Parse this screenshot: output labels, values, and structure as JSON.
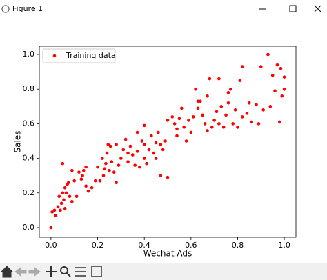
{
  "window_title": "Figure 1",
  "chart_data": {
    "type": "scatter",
    "xlabel": "Wechat Ads",
    "ylabel": "Sales",
    "legend": "upper left",
    "series": [
      {
        "name": "Training data",
        "color": "#ff0000",
        "x": [
          0.0,
          0.005,
          0.015,
          0.02,
          0.03,
          0.035,
          0.04,
          0.045,
          0.05,
          0.05,
          0.055,
          0.06,
          0.065,
          0.07,
          0.075,
          0.08,
          0.09,
          0.1,
          0.11,
          0.12,
          0.13,
          0.135,
          0.14,
          0.15,
          0.16,
          0.175,
          0.19,
          0.2,
          0.21,
          0.22,
          0.225,
          0.23,
          0.235,
          0.24,
          0.245,
          0.25,
          0.255,
          0.26,
          0.27,
          0.28,
          0.29,
          0.3,
          0.31,
          0.32,
          0.33,
          0.34,
          0.35,
          0.36,
          0.37,
          0.37,
          0.38,
          0.39,
          0.4,
          0.4,
          0.41,
          0.42,
          0.43,
          0.44,
          0.45,
          0.46,
          0.47,
          0.47,
          0.48,
          0.49,
          0.5,
          0.5,
          0.53,
          0.54,
          0.55,
          0.56,
          0.57,
          0.58,
          0.59,
          0.6,
          0.61,
          0.62,
          0.63,
          0.64,
          0.65,
          0.66,
          0.67,
          0.67,
          0.68,
          0.69,
          0.7,
          0.71,
          0.72,
          0.72,
          0.73,
          0.74,
          0.75,
          0.76,
          0.76,
          0.77,
          0.78,
          0.79,
          0.8,
          0.81,
          0.82,
          0.82,
          0.84,
          0.85,
          0.86,
          0.88,
          0.89,
          0.9,
          0.91,
          0.93,
          0.94,
          0.95,
          0.96,
          0.97,
          0.98,
          0.99,
          1.0,
          1.0,
          0.985,
          0.52,
          0.63,
          0.45,
          0.33,
          0.15,
          0.09,
          0.06,
          0.28,
          0.4,
          0.54
        ],
        "values": [
          0.0,
          0.09,
          0.1,
          0.07,
          0.12,
          0.18,
          0.1,
          0.14,
          0.37,
          0.2,
          0.16,
          0.23,
          0.2,
          0.25,
          0.26,
          0.18,
          0.33,
          0.27,
          0.18,
          0.32,
          0.28,
          0.3,
          0.33,
          0.35,
          0.21,
          0.23,
          0.27,
          0.35,
          0.27,
          0.4,
          0.3,
          0.34,
          0.37,
          0.43,
          0.48,
          0.33,
          0.47,
          0.38,
          0.32,
          0.26,
          0.36,
          0.4,
          0.45,
          0.51,
          0.38,
          0.47,
          0.42,
          0.36,
          0.55,
          0.44,
          0.35,
          0.5,
          0.4,
          0.59,
          0.37,
          0.45,
          0.53,
          0.43,
          0.4,
          0.55,
          0.48,
          0.3,
          0.45,
          0.5,
          0.62,
          0.29,
          0.6,
          0.57,
          0.63,
          0.69,
          0.58,
          0.5,
          0.62,
          0.55,
          0.64,
          0.8,
          0.73,
          0.73,
          0.65,
          0.6,
          0.76,
          0.56,
          0.86,
          0.58,
          0.62,
          0.67,
          0.86,
          0.6,
          0.7,
          0.58,
          0.65,
          0.72,
          0.78,
          0.8,
          0.6,
          0.68,
          0.58,
          0.85,
          0.64,
          0.93,
          0.66,
          0.72,
          0.61,
          0.71,
          0.6,
          0.93,
          0.68,
          1.0,
          0.7,
          0.88,
          0.79,
          0.94,
          0.61,
          0.76,
          0.8,
          0.87,
          0.92,
          0.64,
          0.69,
          0.49,
          0.43,
          0.24,
          0.15,
          0.11,
          0.48,
          0.48,
          0.53
        ]
      }
    ],
    "xlim": [
      -0.05,
      1.05
    ],
    "ylim": [
      -0.056,
      1.048
    ],
    "xticks": [
      {
        "value": 0,
        "label": "0.0"
      },
      {
        "value": 0.2,
        "label": "0.2"
      },
      {
        "value": 0.4,
        "label": "0.4"
      },
      {
        "value": 0.6,
        "label": "0.6"
      },
      {
        "value": 0.8,
        "label": "0.8"
      },
      {
        "value": 1,
        "label": "1.0"
      }
    ],
    "yticks": [
      {
        "value": 0,
        "label": "0.0"
      },
      {
        "value": 0.2,
        "label": "0.2"
      },
      {
        "value": 0.4,
        "label": "0.4"
      },
      {
        "value": 0.6,
        "label": "0.6"
      },
      {
        "value": 0.8,
        "label": "0.8"
      },
      {
        "value": 1,
        "label": "1.0"
      }
    ]
  }
}
